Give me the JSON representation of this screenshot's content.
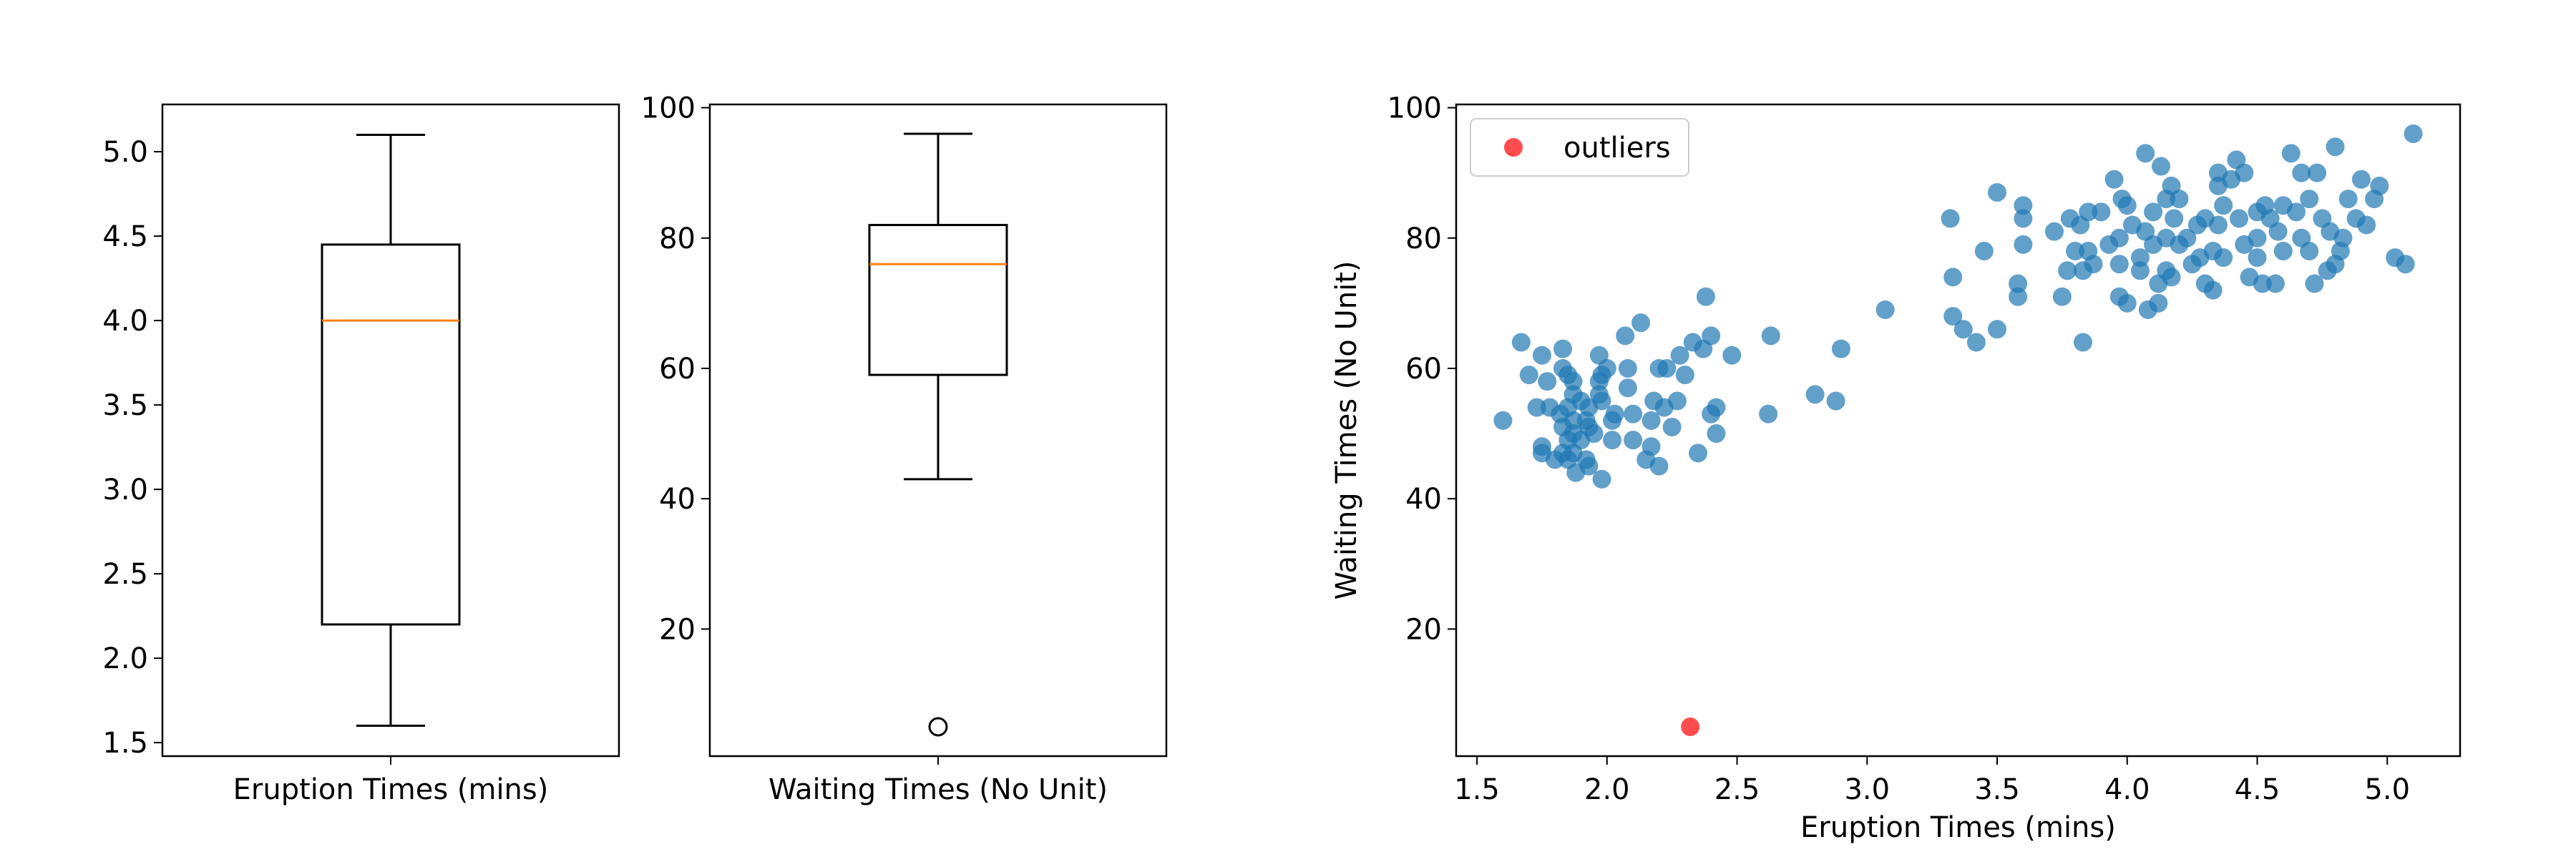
{
  "chart_data": [
    {
      "type": "box",
      "xlabel": "Eruption Times (mins)",
      "ylim": [
        1.42,
        5.28
      ],
      "yticks": [
        1.5,
        2.0,
        2.5,
        3.0,
        3.5,
        4.0,
        4.5,
        5.0
      ],
      "ytick_labels": [
        "1.5",
        "2.0",
        "2.5",
        "3.0",
        "3.5",
        "4.0",
        "4.5",
        "5.0"
      ],
      "box": {
        "whisker_low": 1.6,
        "q1": 2.2,
        "median": 4.0,
        "q3": 4.45,
        "whisker_high": 5.1,
        "outliers": []
      }
    },
    {
      "type": "box",
      "xlabel": "Waiting Times (No Unit)",
      "ylim": [
        0.5,
        100.5
      ],
      "yticks": [
        20,
        40,
        60,
        80,
        100
      ],
      "ytick_labels": [
        "20",
        "40",
        "60",
        "80",
        "100"
      ],
      "box": {
        "whisker_low": 43,
        "q1": 59,
        "median": 76,
        "q3": 82,
        "whisker_high": 96,
        "outliers": [
          5
        ]
      }
    },
    {
      "type": "scatter",
      "xlabel": "Eruption Times (mins)",
      "ylabel": "Waiting Times (No Unit)",
      "xlim": [
        1.42,
        5.28
      ],
      "ylim": [
        0.5,
        100.5
      ],
      "xticks": [
        1.5,
        2.0,
        2.5,
        3.0,
        3.5,
        4.0,
        4.5,
        5.0
      ],
      "xtick_labels": [
        "1.5",
        "2.0",
        "2.5",
        "3.0",
        "3.5",
        "4.0",
        "4.5",
        "5.0"
      ],
      "yticks": [
        20,
        40,
        60,
        80,
        100
      ],
      "ytick_labels": [
        "20",
        "40",
        "60",
        "80",
        "100"
      ],
      "legend": {
        "placement": "upper-left",
        "entries": [
          "outliers"
        ]
      },
      "series": [
        {
          "color": "#1f77b4",
          "points": [
            [
              1.6,
              52
            ],
            [
              1.67,
              64
            ],
            [
              1.7,
              59
            ],
            [
              1.73,
              54
            ],
            [
              1.75,
              62
            ],
            [
              1.75,
              48
            ],
            [
              1.75,
              47
            ],
            [
              1.77,
              58
            ],
            [
              1.78,
              54
            ],
            [
              1.8,
              46
            ],
            [
              1.82,
              53
            ],
            [
              1.83,
              63
            ],
            [
              1.83,
              60
            ],
            [
              1.83,
              51
            ],
            [
              1.83,
              47
            ],
            [
              1.85,
              59
            ],
            [
              1.85,
              54
            ],
            [
              1.85,
              49
            ],
            [
              1.85,
              46
            ],
            [
              1.87,
              58
            ],
            [
              1.87,
              56
            ],
            [
              1.87,
              52
            ],
            [
              1.87,
              50
            ],
            [
              1.87,
              47
            ],
            [
              1.88,
              44
            ],
            [
              1.9,
              55
            ],
            [
              1.9,
              49
            ],
            [
              1.92,
              52
            ],
            [
              1.92,
              46
            ],
            [
              1.93,
              54
            ],
            [
              1.93,
              51
            ],
            [
              1.93,
              45
            ],
            [
              1.95,
              50
            ],
            [
              1.97,
              62
            ],
            [
              1.97,
              58
            ],
            [
              1.97,
              56
            ],
            [
              1.98,
              59
            ],
            [
              1.98,
              55
            ],
            [
              1.98,
              43
            ],
            [
              2.0,
              60
            ],
            [
              2.02,
              52
            ],
            [
              2.02,
              49
            ],
            [
              2.03,
              53
            ],
            [
              2.07,
              65
            ],
            [
              2.08,
              60
            ],
            [
              2.08,
              57
            ],
            [
              2.1,
              53
            ],
            [
              2.1,
              49
            ],
            [
              2.13,
              67
            ],
            [
              2.15,
              46
            ],
            [
              2.17,
              48
            ],
            [
              2.17,
              52
            ],
            [
              2.18,
              55
            ],
            [
              2.2,
              60
            ],
            [
              2.2,
              45
            ],
            [
              2.22,
              54
            ],
            [
              2.23,
              60
            ],
            [
              2.25,
              51
            ],
            [
              2.27,
              55
            ],
            [
              2.28,
              62
            ],
            [
              2.3,
              59
            ],
            [
              2.33,
              64
            ],
            [
              2.35,
              47
            ],
            [
              2.37,
              63
            ],
            [
              2.38,
              71
            ],
            [
              2.4,
              65
            ],
            [
              2.4,
              53
            ],
            [
              2.42,
              54
            ],
            [
              2.42,
              50
            ],
            [
              2.48,
              62
            ],
            [
              2.62,
              53
            ],
            [
              2.63,
              65
            ],
            [
              2.8,
              56
            ],
            [
              2.88,
              55
            ],
            [
              2.9,
              63
            ],
            [
              3.07,
              69
            ],
            [
              3.32,
              83
            ],
            [
              3.33,
              74
            ],
            [
              3.33,
              68
            ],
            [
              3.37,
              66
            ],
            [
              3.42,
              64
            ],
            [
              3.45,
              78
            ],
            [
              3.5,
              66
            ],
            [
              3.5,
              87
            ],
            [
              3.58,
              73
            ],
            [
              3.58,
              71
            ],
            [
              3.6,
              85
            ],
            [
              3.6,
              83
            ],
            [
              3.6,
              79
            ],
            [
              3.72,
              81
            ],
            [
              3.75,
              71
            ],
            [
              3.77,
              75
            ],
            [
              3.78,
              83
            ],
            [
              3.8,
              78
            ],
            [
              3.82,
              82
            ],
            [
              3.83,
              75
            ],
            [
              3.83,
              64
            ],
            [
              3.85,
              84
            ],
            [
              3.85,
              78
            ],
            [
              3.87,
              76
            ],
            [
              3.9,
              84
            ],
            [
              3.93,
              79
            ],
            [
              3.95,
              89
            ],
            [
              3.97,
              80
            ],
            [
              3.97,
              76
            ],
            [
              3.97,
              71
            ],
            [
              3.98,
              86
            ],
            [
              4.0,
              85
            ],
            [
              4.0,
              70
            ],
            [
              4.02,
              82
            ],
            [
              4.05,
              77
            ],
            [
              4.05,
              75
            ],
            [
              4.07,
              93
            ],
            [
              4.07,
              81
            ],
            [
              4.08,
              69
            ],
            [
              4.1,
              84
            ],
            [
              4.1,
              79
            ],
            [
              4.12,
              73
            ],
            [
              4.12,
              70
            ],
            [
              4.13,
              91
            ],
            [
              4.15,
              86
            ],
            [
              4.15,
              80
            ],
            [
              4.15,
              75
            ],
            [
              4.17,
              88
            ],
            [
              4.17,
              74
            ],
            [
              4.18,
              83
            ],
            [
              4.2,
              86
            ],
            [
              4.2,
              79
            ],
            [
              4.23,
              80
            ],
            [
              4.25,
              76
            ],
            [
              4.27,
              82
            ],
            [
              4.28,
              77
            ],
            [
              4.3,
              83
            ],
            [
              4.3,
              73
            ],
            [
              4.33,
              78
            ],
            [
              4.33,
              72
            ],
            [
              4.35,
              90
            ],
            [
              4.35,
              88
            ],
            [
              4.35,
              82
            ],
            [
              4.37,
              85
            ],
            [
              4.37,
              77
            ],
            [
              4.4,
              89
            ],
            [
              4.42,
              92
            ],
            [
              4.43,
              83
            ],
            [
              4.45,
              90
            ],
            [
              4.45,
              79
            ],
            [
              4.47,
              74
            ],
            [
              4.5,
              84
            ],
            [
              4.5,
              80
            ],
            [
              4.5,
              77
            ],
            [
              4.52,
              73
            ],
            [
              4.53,
              85
            ],
            [
              4.55,
              83
            ],
            [
              4.57,
              73
            ],
            [
              4.58,
              81
            ],
            [
              4.6,
              85
            ],
            [
              4.6,
              78
            ],
            [
              4.63,
              93
            ],
            [
              4.65,
              84
            ],
            [
              4.67,
              90
            ],
            [
              4.67,
              80
            ],
            [
              4.7,
              86
            ],
            [
              4.7,
              78
            ],
            [
              4.72,
              73
            ],
            [
              4.73,
              90
            ],
            [
              4.75,
              83
            ],
            [
              4.77,
              75
            ],
            [
              4.78,
              81
            ],
            [
              4.8,
              94
            ],
            [
              4.8,
              76
            ],
            [
              4.82,
              78
            ],
            [
              4.83,
              80
            ],
            [
              4.85,
              86
            ],
            [
              4.88,
              83
            ],
            [
              4.9,
              89
            ],
            [
              4.92,
              82
            ],
            [
              4.95,
              86
            ],
            [
              4.97,
              88
            ],
            [
              5.03,
              77
            ],
            [
              5.07,
              76
            ],
            [
              5.1,
              96
            ]
          ]
        },
        {
          "name": "outliers",
          "color": "#ff0000",
          "points": [
            [
              2.32,
              5
            ]
          ]
        }
      ]
    }
  ],
  "colors": {
    "box_edge": "#000000",
    "median": "#ff7f0e",
    "scatter_points": "#1f77b4",
    "outlier_points": "#ff0000"
  }
}
